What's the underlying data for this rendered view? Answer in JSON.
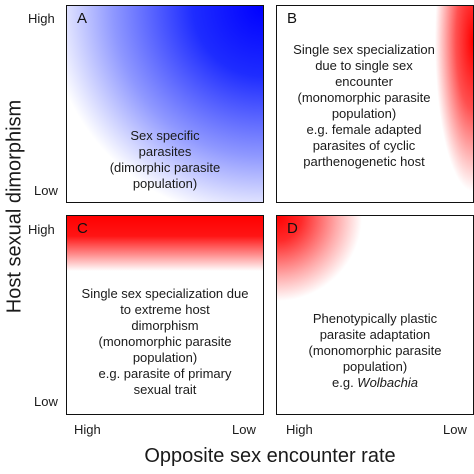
{
  "axes": {
    "y_label": "Host sexual dimorphism",
    "x_label": "Opposite sex encounter rate",
    "y_ticks": {
      "high": "High",
      "low": "Low"
    },
    "x_ticks": {
      "high": "High",
      "low": "Low"
    }
  },
  "panels": {
    "a": {
      "letter": "A",
      "lines": [
        "Sex specific",
        "parasites",
        "(dimorphic parasite",
        "population)"
      ],
      "gradient_color": "#0000ff"
    },
    "b": {
      "letter": "B",
      "lines": [
        "Single sex specialization",
        "due to single sex",
        "encounter",
        "(monomorphic parasite",
        "population)",
        "e.g. female adapted",
        "parasites of cyclic",
        "parthenogenetic host"
      ],
      "gradient_color": "#ff0000"
    },
    "c": {
      "letter": "C",
      "lines": [
        "Single sex specialization due",
        "to extreme host",
        "dimorphism",
        "(monomorphic parasite",
        "population)",
        "e.g. parasite of primary",
        "sexual  trait"
      ],
      "gradient_color": "#ff0000"
    },
    "d": {
      "letter": "D",
      "lines": [
        "Phenotypically plastic",
        "parasite adaptation",
        "(monomorphic parasite",
        "population)"
      ],
      "example_prefix": "e.g. ",
      "example_italic": "Wolbachia",
      "gradient_color": "#ff0000"
    }
  }
}
